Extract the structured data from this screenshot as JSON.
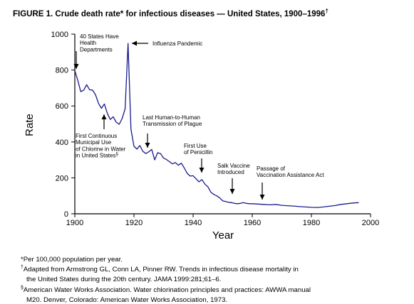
{
  "figure": {
    "title_main": "FIGURE 1. Crude death rate* for infectious diseases — United States, 1900–1996",
    "title_mark": "†"
  },
  "chart_data": {
    "type": "line",
    "ylabel": "Rate",
    "xlabel": "Year",
    "xlim": [
      1900,
      2000
    ],
    "ylim": [
      0,
      1000
    ],
    "x_ticks": [
      1900,
      1920,
      1940,
      1960,
      1980,
      2000
    ],
    "y_ticks": [
      0,
      200,
      400,
      600,
      800,
      1000
    ],
    "series": [
      {
        "color": "#1a1a8c",
        "x": [
          1900,
          1901,
          1902,
          1903,
          1904,
          1905,
          1906,
          1907,
          1908,
          1909,
          1910,
          1911,
          1912,
          1913,
          1914,
          1915,
          1916,
          1917,
          1918,
          1919,
          1920,
          1921,
          1922,
          1923,
          1924,
          1925,
          1926,
          1927,
          1928,
          1929,
          1930,
          1931,
          1932,
          1933,
          1934,
          1935,
          1936,
          1937,
          1938,
          1939,
          1940,
          1941,
          1942,
          1943,
          1944,
          1945,
          1946,
          1947,
          1948,
          1949,
          1950,
          1951,
          1952,
          1953,
          1954,
          1955,
          1956,
          1957,
          1958,
          1959,
          1960,
          1962,
          1964,
          1966,
          1968,
          1970,
          1972,
          1974,
          1976,
          1978,
          1980,
          1982,
          1984,
          1986,
          1988,
          1990,
          1992,
          1994,
          1996
        ],
        "values": [
          797,
          742,
          680,
          688,
          718,
          690,
          688,
          662,
          615,
          587,
          611,
          558,
          525,
          540,
          510,
          498,
          530,
          585,
          948,
          470,
          376,
          360,
          380,
          348,
          335,
          345,
          358,
          300,
          340,
          335,
          310,
          302,
          290,
          278,
          285,
          270,
          282,
          255,
          225,
          210,
          212,
          195,
          178,
          190,
          165,
          150,
          120,
          108,
          100,
          88,
          72,
          68,
          64,
          62,
          58,
          56,
          58,
          62,
          58,
          56,
          56,
          54,
          52,
          50,
          52,
          47,
          45,
          43,
          40,
          38,
          36,
          35,
          38,
          42,
          46,
          52,
          56,
          60,
          62
        ]
      }
    ],
    "annotations": [
      {
        "lines": [
          "40 States Have",
          "Health",
          "Departments"
        ],
        "year": 1900,
        "value": 800
      },
      {
        "lines": [
          "Influenza Pandemic"
        ],
        "year": 1918,
        "value": 948
      },
      {
        "lines": [
          "First Continuous",
          "Municipal Use",
          "of Chlorine in Water",
          "in United States"
        ],
        "mark": "§",
        "year": 1908,
        "value": 620
      },
      {
        "lines": [
          "Last Human-to-Human",
          "Transmission of Plague"
        ],
        "year": 1925,
        "value": 348
      },
      {
        "lines": [
          "First Use",
          "of Penicillin"
        ],
        "year": 1943,
        "value": 190
      },
      {
        "lines": [
          "Salk Vaccine",
          "Introduced"
        ],
        "year": 1955,
        "value": 56
      },
      {
        "lines": [
          "Passage of",
          "Vaccination Assistance Act"
        ],
        "year": 1963,
        "value": 53
      }
    ]
  },
  "footnotes": [
    {
      "mark": "",
      "text": "*Per 100,000 population per year."
    },
    {
      "mark": "†",
      "text": "Adapted from Armstrong GL, Conn LA, Pinner RW. Trends in infectious disease mortality in"
    },
    {
      "mark": "",
      "text": "the United States during the 20th century. JAMA 1999:281;61–6."
    },
    {
      "mark": "§",
      "text": "American Water Works Association. Water chlorination principles and practices: AWWA manual"
    },
    {
      "mark": "",
      "text": "M20. Denver, Colorado: American Water Works Association, 1973."
    }
  ]
}
